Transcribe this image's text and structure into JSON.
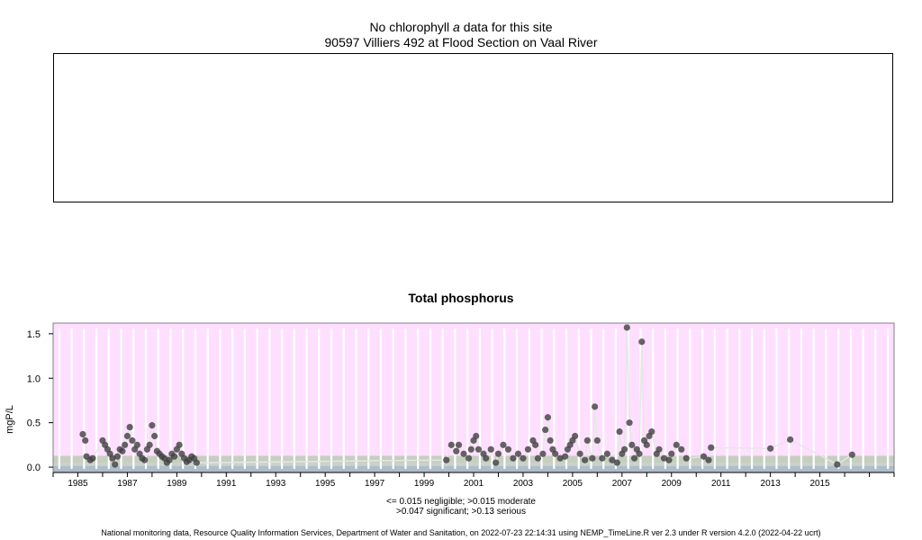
{
  "header": {
    "line1_before": "No chlorophyll ",
    "line1_italic": "a",
    "line1_after": " data for this site",
    "line2": "90597 Villiers 492 at Flood Section on Vaal River"
  },
  "chart_data": {
    "type": "scatter",
    "title": "Total phosphorus",
    "xlabel": "",
    "ylabel": "mgP/L",
    "xlim": [
      1984.0,
      2018.0
    ],
    "ylim": [
      -0.06,
      1.62
    ],
    "yticks": [
      "0.0",
      "0.5",
      "1.0",
      "1.5"
    ],
    "xticks": [
      "1985",
      "1987",
      "1989",
      "1991",
      "1993",
      "1995",
      "1997",
      "1999",
      "2001",
      "2003",
      "2005",
      "2007",
      "2009",
      "2011",
      "2013",
      "2015"
    ],
    "bands": [
      {
        "label": "negligible",
        "from": 0.0,
        "to": 0.015,
        "color": "#b0bccc"
      },
      {
        "label": "moderate",
        "from": 0.015,
        "to": 0.047,
        "color": "#c8d4c8"
      },
      {
        "label": "significant",
        "from": 0.047,
        "to": 0.13,
        "color": "#c6cec0"
      },
      {
        "label": "serious",
        "from": 0.13,
        "to": 1.62,
        "color": "#ffdfff"
      }
    ],
    "point_color": "#404040",
    "x": [
      1985.2,
      1985.3,
      1985.35,
      1985.5,
      1985.6,
      1986.0,
      1986.1,
      1986.2,
      1986.3,
      1986.4,
      1986.5,
      1986.6,
      1986.7,
      1986.8,
      1986.9,
      1987.0,
      1987.1,
      1987.2,
      1987.3,
      1987.4,
      1987.5,
      1987.6,
      1987.7,
      1987.8,
      1987.9,
      1988.0,
      1988.1,
      1988.2,
      1988.3,
      1988.4,
      1988.5,
      1988.6,
      1988.7,
      1988.8,
      1988.9,
      1989.0,
      1989.1,
      1989.2,
      1989.3,
      1989.4,
      1989.5,
      1989.6,
      1989.7,
      1989.8,
      1999.9,
      2000.1,
      2000.3,
      2000.4,
      2000.6,
      2000.8,
      2000.9,
      2001.0,
      2001.1,
      2001.2,
      2001.4,
      2001.5,
      2001.7,
      2001.9,
      2002.0,
      2002.2,
      2002.4,
      2002.6,
      2002.8,
      2003.0,
      2003.2,
      2003.4,
      2003.5,
      2003.6,
      2003.8,
      2003.9,
      2004.0,
      2004.1,
      2004.2,
      2004.3,
      2004.5,
      2004.7,
      2004.8,
      2004.9,
      2005.0,
      2005.1,
      2005.3,
      2005.5,
      2005.6,
      2005.8,
      2005.9,
      2006.0,
      2006.2,
      2006.4,
      2006.6,
      2006.8,
      2006.9,
      2007.0,
      2007.1,
      2007.2,
      2007.3,
      2007.4,
      2007.5,
      2007.6,
      2007.7,
      2007.8,
      2007.9,
      2008.0,
      2008.1,
      2008.2,
      2008.4,
      2008.5,
      2008.7,
      2008.9,
      2009.0,
      2009.2,
      2009.4,
      2009.6,
      2010.3,
      2010.5,
      2010.6,
      2013.0,
      2013.8,
      2015.7,
      2016.3
    ],
    "y": [
      0.37,
      0.3,
      0.12,
      0.08,
      0.1,
      0.3,
      0.25,
      0.2,
      0.15,
      0.1,
      0.03,
      0.12,
      0.2,
      0.18,
      0.25,
      0.35,
      0.45,
      0.3,
      0.2,
      0.25,
      0.15,
      0.1,
      0.08,
      0.2,
      0.25,
      0.47,
      0.35,
      0.18,
      0.15,
      0.12,
      0.1,
      0.05,
      0.08,
      0.15,
      0.12,
      0.2,
      0.25,
      0.15,
      0.1,
      0.06,
      0.08,
      0.12,
      0.1,
      0.05,
      0.08,
      0.25,
      0.18,
      0.25,
      0.15,
      0.1,
      0.2,
      0.3,
      0.35,
      0.2,
      0.15,
      0.1,
      0.2,
      0.05,
      0.15,
      0.25,
      0.2,
      0.1,
      0.15,
      0.1,
      0.2,
      0.3,
      0.25,
      0.1,
      0.15,
      0.42,
      0.56,
      0.3,
      0.2,
      0.15,
      0.1,
      0.12,
      0.2,
      0.25,
      0.3,
      0.35,
      0.15,
      0.08,
      0.3,
      0.1,
      0.68,
      0.3,
      0.1,
      0.15,
      0.08,
      0.05,
      0.4,
      0.15,
      0.2,
      1.57,
      0.5,
      0.25,
      0.1,
      0.2,
      0.15,
      1.41,
      0.3,
      0.25,
      0.35,
      0.4,
      0.15,
      0.2,
      0.1,
      0.08,
      0.15,
      0.25,
      0.2,
      0.1,
      0.12,
      0.08,
      0.22,
      0.21,
      0.31,
      0.03,
      0.14
    ],
    "legend_line1": "<= 0.015 negligible; >0.015 moderate",
    "legend_line2": ">0.047 significant; >0.13 serious"
  },
  "footer": {
    "text": "National monitoring data, Resource Quality Information Services, Department of Water and Sanitation, on 2022-07-23 22:14:31 using NEMP_TimeLine.R ver 2.3 under R version 4.2.0 (2022-04-22 ucrt)"
  }
}
